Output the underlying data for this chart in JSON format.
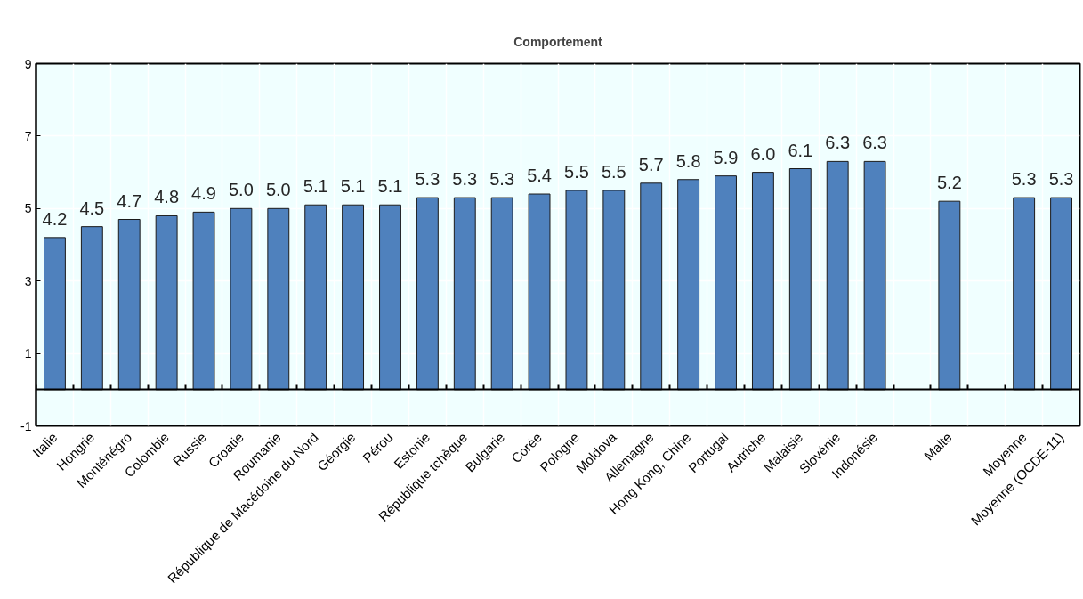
{
  "chart_data": {
    "type": "bar",
    "title": "Comportement",
    "categories": [
      "Italie",
      "Hongrie",
      "Monténégro",
      "Colombie",
      "Russie",
      "Croatie",
      "Roumanie",
      "République de Macédoine du Nord",
      "Géorgie",
      "Pérou",
      "Estonie",
      "République tchèque",
      "Bulgarie",
      "Corée",
      "Pologne",
      "Moldova",
      "Allemagne",
      "Hong Kong, Chine",
      "Portugal",
      "Autriche",
      "Malaisie",
      "Slovénie",
      "Indonésie",
      null,
      "Malte",
      null,
      "Moyenne",
      "Moyenne (OCDE-11)"
    ],
    "values": [
      4.2,
      4.5,
      4.7,
      4.8,
      4.9,
      5.0,
      5.0,
      5.1,
      5.1,
      5.1,
      5.3,
      5.3,
      5.3,
      5.4,
      5.5,
      5.5,
      5.7,
      5.8,
      5.9,
      6.0,
      6.1,
      6.3,
      6.3,
      null,
      5.2,
      null,
      5.3,
      5.3
    ],
    "value_labels": [
      "4.2",
      "4.5",
      "4.7",
      "4.8",
      "4.9",
      "5.0",
      "5.0",
      "5.1",
      "5.1",
      "5.1",
      "5.3",
      "5.3",
      "5.3",
      "5.4",
      "5.5",
      "5.5",
      "5.7",
      "5.8",
      "5.9",
      "6.0",
      "6.1",
      "6.3",
      "6.3",
      null,
      "5.2",
      null,
      "5.3",
      "5.3"
    ],
    "color": "#4f81bd",
    "ylim": [
      -1,
      9
    ],
    "yticks": [
      -1,
      1,
      3,
      5,
      7,
      9
    ],
    "grid": true
  }
}
